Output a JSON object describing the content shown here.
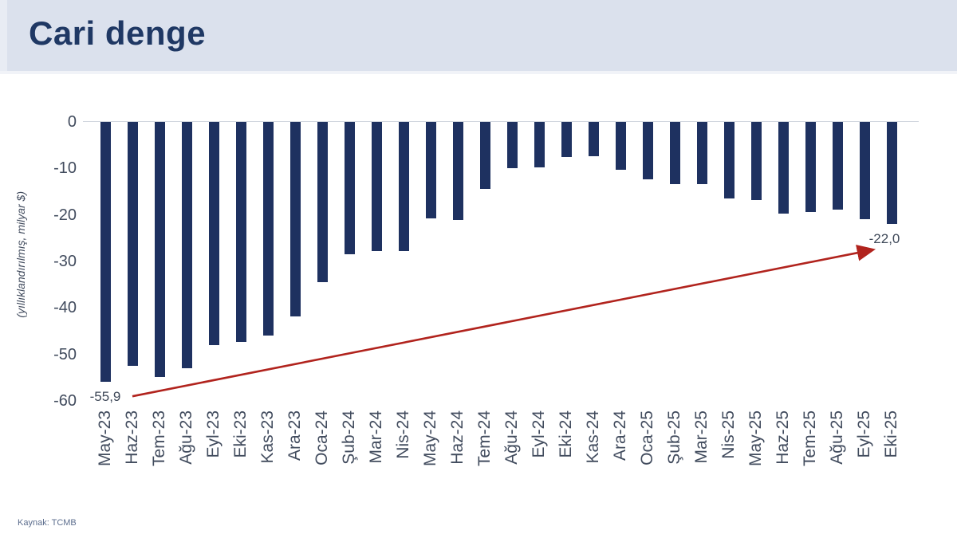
{
  "header": {
    "title": "Cari denge"
  },
  "footer": {
    "source": "Kaynak: TCMB"
  },
  "chart_data": {
    "type": "bar",
    "title": "Cari denge",
    "ylabel": "(yıllıklandırılmış, milyar $)",
    "unit": "milyar $",
    "categories": [
      "May-23",
      "Haz-23",
      "Tem-23",
      "Ağu-23",
      "Eyl-23",
      "Eki-23",
      "Kas-23",
      "Ara-23",
      "Oca-24",
      "Şub-24",
      "Mar-24",
      "Nis-24",
      "May-24",
      "Haz-24",
      "Tem-24",
      "Ağu-24",
      "Eyl-24",
      "Eki-24",
      "Kas-24",
      "Ara-24",
      "Oca-25",
      "Şub-25",
      "Mar-25",
      "Nis-25",
      "May-25",
      "Haz-25",
      "Tem-25",
      "Ağu-25",
      "Eyl-25",
      "Eki-25"
    ],
    "values": [
      -55.9,
      -52.5,
      -54.8,
      -53.0,
      -48.0,
      -47.3,
      -45.9,
      -41.9,
      -34.4,
      -28.5,
      -27.7,
      -27.7,
      -20.8,
      -21.0,
      -14.4,
      -10.0,
      -9.8,
      -7.5,
      -7.4,
      -10.2,
      -12.4,
      -13.4,
      -13.4,
      -16.4,
      -16.8,
      -19.7,
      -19.4,
      -18.9,
      -20.9,
      -22.0
    ],
    "ylim": [
      -60,
      0
    ],
    "yticks": [
      0,
      -10,
      -20,
      -30,
      -40,
      -50,
      -60
    ],
    "grid": "zero-line-only",
    "legend": "none",
    "bar_color": "#1e3160",
    "axis_text_color": "#424c5e",
    "annotations": [
      {
        "text": "-55,9",
        "bar": 0,
        "dx": 0
      },
      {
        "text": "-22,0",
        "bar": 29,
        "dx": -9
      }
    ],
    "trend_arrow": {
      "color": "#b1231d",
      "x1_bar": 1.0,
      "y1_value": -59.0,
      "x2_bar": 28.3,
      "y2_value": -27.5
    }
  }
}
